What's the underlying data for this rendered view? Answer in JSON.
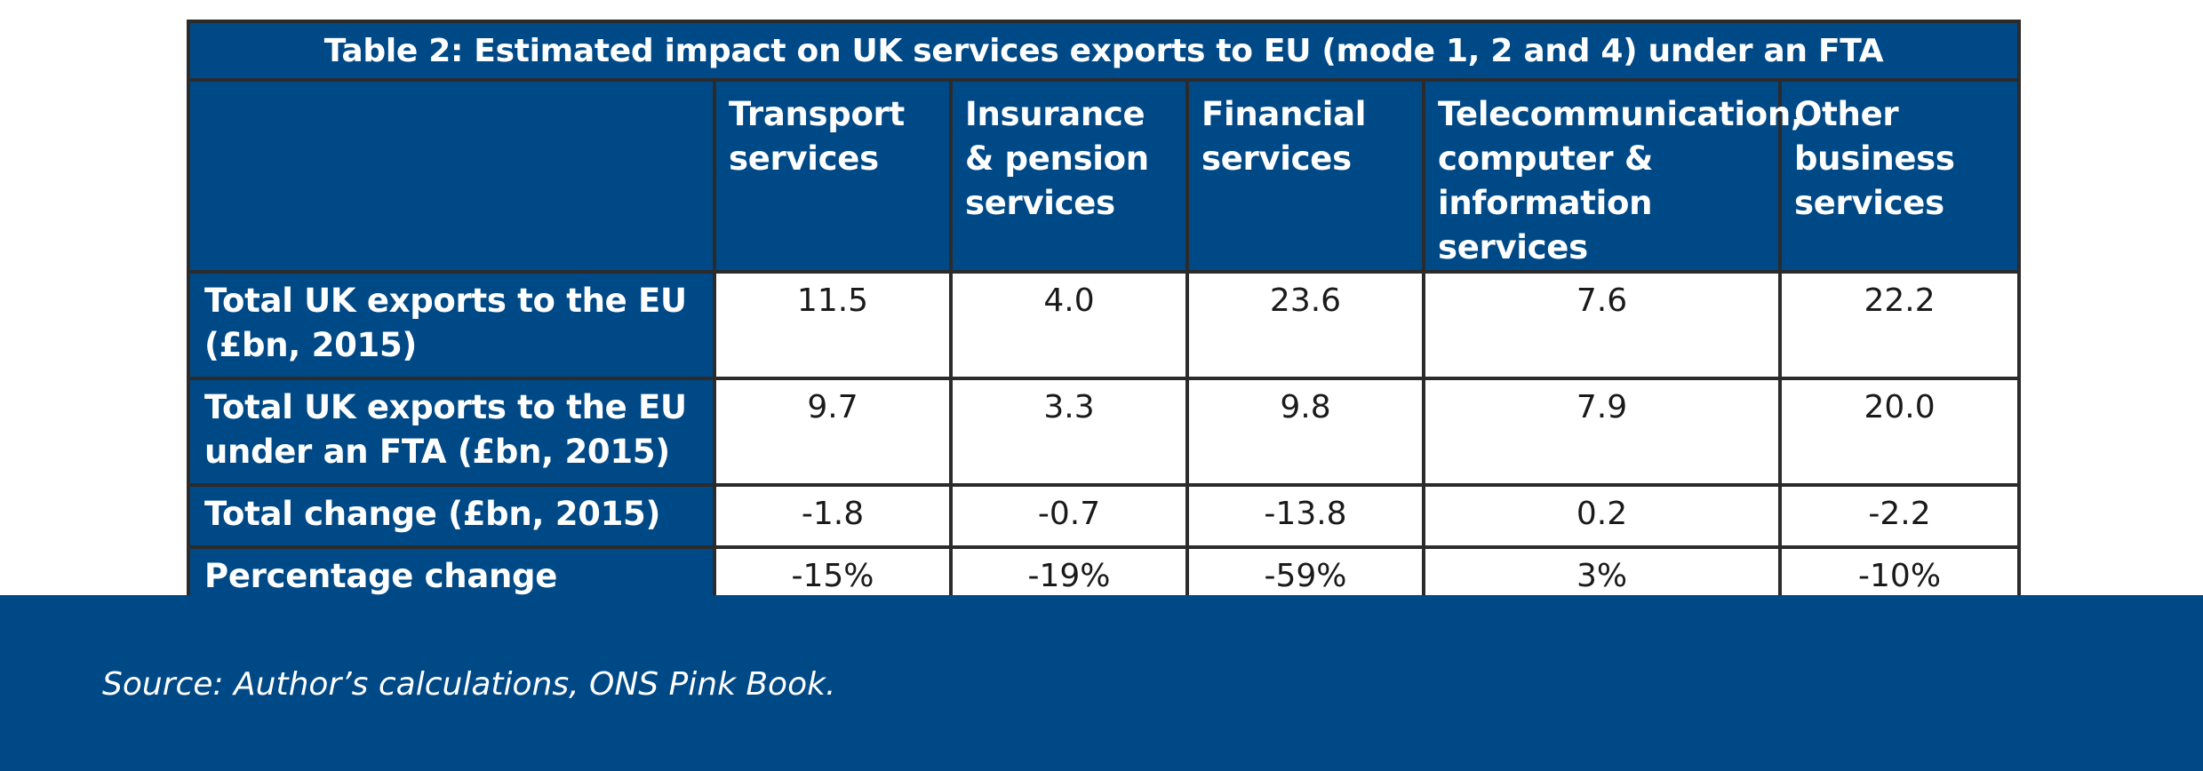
{
  "table": {
    "caption": "Table 2: Estimated impact on UK services exports to EU (mode 1, 2 and 4) under an FTA",
    "columns": [
      [
        "Transport",
        "services"
      ],
      [
        "Insurance",
        "& pension",
        "services"
      ],
      [
        "Financial",
        "services"
      ],
      [
        "Telecommunication,",
        "computer &",
        "information services"
      ],
      [
        "Other",
        "business",
        "services"
      ]
    ],
    "rows": [
      {
        "label": [
          "Total UK exports to the EU",
          "(£bn, 2015)"
        ],
        "values": [
          "11.5",
          "4.0",
          "23.6",
          "7.6",
          "22.2"
        ]
      },
      {
        "label": [
          "Total UK exports to the EU",
          "under an FTA (£bn, 2015)"
        ],
        "values": [
          "9.7",
          "3.3",
          "9.8",
          "7.9",
          "20.0"
        ]
      },
      {
        "label": [
          "Total change (£bn, 2015)"
        ],
        "values": [
          "-1.8",
          "-0.7",
          "-13.8",
          "0.2",
          "-2.2"
        ]
      },
      {
        "label": [
          "Percentage change"
        ],
        "values": [
          "-15%",
          "-19%",
          "-59%",
          "3%",
          "-10%"
        ]
      }
    ]
  },
  "footer": {
    "source": "Source: Author’s calculations, ONS Pink Book."
  },
  "colors": {
    "navy": "#004987",
    "border": "#2b2b2b"
  }
}
